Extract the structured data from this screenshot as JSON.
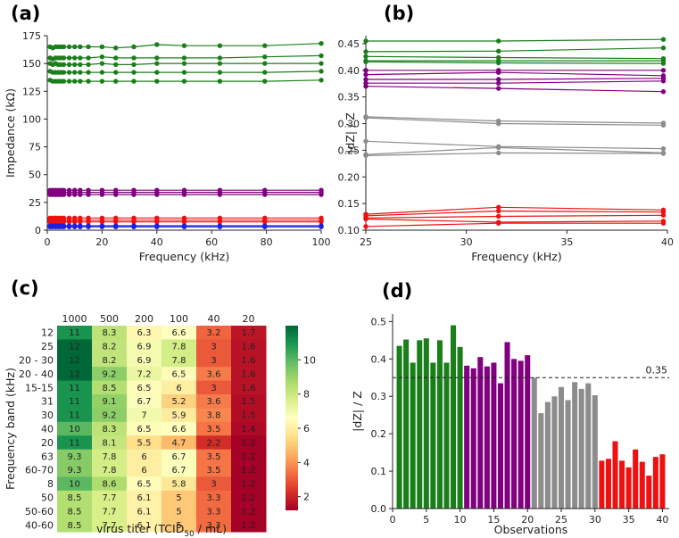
{
  "colors": {
    "green": "#1a7f1a",
    "purple": "#800080",
    "red": "#ee1111",
    "blue": "#1f1fe0",
    "gray": "#8c8c8c"
  },
  "chart_data": [
    {
      "panel": "(a)",
      "type": "line",
      "xlabel": "Frequency (kHz)",
      "ylabel": "Impedance (kΩ)",
      "xlim": [
        0,
        100
      ],
      "ylim": [
        0,
        175
      ],
      "xticks": [
        "0",
        "20",
        "40",
        "60",
        "80",
        "100"
      ],
      "yticks": [
        "0",
        "25",
        "50",
        "75",
        "100",
        "125",
        "150",
        "175"
      ],
      "x": [
        1,
        2,
        3,
        4,
        5,
        6,
        8,
        10,
        12,
        15,
        20,
        25,
        31.6,
        40,
        50,
        63,
        79.4,
        100
      ],
      "series": [
        {
          "name": "green 1",
          "color": "green",
          "values": [
            165,
            164,
            165,
            165,
            165,
            165,
            165,
            165,
            165,
            165,
            165,
            164,
            165,
            167,
            166,
            166,
            166,
            168
          ]
        },
        {
          "name": "green 2",
          "color": "green",
          "values": [
            155,
            154,
            155,
            155,
            155,
            155,
            155,
            155,
            155,
            155,
            156,
            155,
            155,
            155,
            155,
            155,
            156,
            157
          ]
        },
        {
          "name": "green 3",
          "color": "green",
          "values": [
            150,
            149,
            150,
            149,
            149,
            149,
            149,
            149,
            149,
            149,
            150,
            149,
            149,
            150,
            150,
            150,
            150,
            150
          ]
        },
        {
          "name": "green 4",
          "color": "green",
          "values": [
            143,
            142,
            142,
            142,
            142,
            142,
            142,
            142,
            142,
            142,
            142,
            142,
            142,
            142,
            142,
            142,
            142,
            143
          ]
        },
        {
          "name": "green 5",
          "color": "green",
          "values": [
            135,
            134,
            134,
            134,
            134,
            134,
            134,
            134,
            134,
            134,
            134,
            134,
            134,
            134,
            134,
            134,
            134,
            135
          ]
        },
        {
          "name": "purple 1",
          "color": "purple",
          "values": [
            36,
            36,
            36,
            36,
            36,
            36,
            36,
            36,
            36,
            36,
            36,
            36,
            36,
            36,
            36,
            36,
            36,
            36
          ]
        },
        {
          "name": "purple 2",
          "color": "purple",
          "values": [
            34,
            34,
            34,
            34,
            34,
            34,
            34,
            34,
            34,
            34,
            34,
            34,
            34,
            34,
            34,
            34,
            34,
            34
          ]
        },
        {
          "name": "purple 3",
          "color": "purple",
          "values": [
            32,
            32,
            32,
            32,
            32,
            32,
            32,
            32,
            32,
            32,
            32,
            32,
            32,
            32,
            32,
            32,
            32,
            32
          ]
        },
        {
          "name": "red 1",
          "color": "red",
          "values": [
            11,
            11,
            11,
            11,
            11,
            11,
            11,
            11,
            11,
            11,
            11,
            11,
            11,
            11,
            11,
            11,
            11,
            11
          ]
        },
        {
          "name": "red 2",
          "color": "red",
          "values": [
            9,
            9,
            9,
            9,
            9,
            9,
            9,
            9,
            9,
            9,
            9,
            9,
            9,
            9,
            9,
            9,
            9,
            9
          ]
        },
        {
          "name": "red 3",
          "color": "red",
          "values": [
            7.5,
            7.5,
            7.5,
            7.5,
            7.5,
            7.5,
            7.5,
            7.5,
            7.5,
            7.5,
            7.5,
            7.5,
            7.5,
            7.5,
            7.5,
            7.5,
            7.5,
            7.5
          ]
        },
        {
          "name": "blue 1",
          "color": "blue",
          "values": [
            4,
            4,
            4,
            4,
            4,
            4,
            4,
            4,
            4,
            4,
            4,
            4,
            4,
            4,
            4,
            4,
            4,
            4
          ]
        },
        {
          "name": "blue 2",
          "color": "blue",
          "values": [
            3,
            3,
            3,
            3,
            3,
            3,
            3,
            3,
            3,
            3,
            3,
            3,
            3,
            3,
            3,
            3,
            3,
            3
          ]
        }
      ]
    },
    {
      "panel": "(b)",
      "type": "line",
      "xlabel": "Frequency (kHz)",
      "ylabel": "|dZ| / Z",
      "xlim": [
        25,
        40
      ],
      "ylim": [
        0.1,
        0.465
      ],
      "xticks": [
        "25",
        "30",
        "35",
        "40"
      ],
      "yticks": [
        "0.10",
        "0.15",
        "0.20",
        "0.25",
        "0.30",
        "0.35",
        "0.40",
        "0.45"
      ],
      "x": [
        25,
        31.6,
        39.8
      ],
      "series": [
        {
          "name": "green 1",
          "color": "green",
          "values": [
            0.455,
            0.455,
            0.458
          ]
        },
        {
          "name": "green 2",
          "color": "green",
          "values": [
            0.435,
            0.436,
            0.442
          ]
        },
        {
          "name": "green 3",
          "color": "green",
          "values": [
            0.426,
            0.424,
            0.422
          ]
        },
        {
          "name": "green 4",
          "color": "green",
          "values": [
            0.418,
            0.418,
            0.418
          ]
        },
        {
          "name": "green 5",
          "color": "green",
          "values": [
            0.416,
            0.414,
            0.413
          ]
        },
        {
          "name": "purple 1",
          "color": "purple",
          "values": [
            0.4,
            0.4,
            0.4
          ]
        },
        {
          "name": "purple 2",
          "color": "purple",
          "values": [
            0.392,
            0.396,
            0.39
          ]
        },
        {
          "name": "purple 3",
          "color": "purple",
          "values": [
            0.383,
            0.383,
            0.385
          ]
        },
        {
          "name": "purple 4",
          "color": "purple",
          "values": [
            0.376,
            0.376,
            0.38
          ]
        },
        {
          "name": "purple 5",
          "color": "purple",
          "values": [
            0.37,
            0.366,
            0.36
          ]
        },
        {
          "name": "gray 1",
          "color": "gray",
          "values": [
            0.313,
            0.305,
            0.301
          ]
        },
        {
          "name": "gray 2",
          "color": "gray",
          "values": [
            0.311,
            0.3,
            0.297
          ]
        },
        {
          "name": "gray 3",
          "color": "gray",
          "values": [
            0.267,
            0.257,
            0.253
          ]
        },
        {
          "name": "gray 4",
          "color": "gray",
          "values": [
            0.242,
            0.255,
            0.245
          ]
        },
        {
          "name": "gray 5",
          "color": "gray",
          "values": [
            0.24,
            0.245,
            0.244
          ]
        },
        {
          "name": "red 1",
          "color": "red",
          "values": [
            0.13,
            0.143,
            0.138
          ]
        },
        {
          "name": "red 2",
          "color": "red",
          "values": [
            0.127,
            0.136,
            0.134
          ]
        },
        {
          "name": "red 3",
          "color": "red",
          "values": [
            0.123,
            0.126,
            0.128
          ]
        },
        {
          "name": "red 4",
          "color": "red",
          "values": [
            0.121,
            0.115,
            0.117
          ]
        },
        {
          "name": "red 5",
          "color": "red",
          "values": [
            0.107,
            0.113,
            0.113
          ]
        }
      ]
    },
    {
      "panel": "(c)",
      "type": "heatmap",
      "xlabel": "virus titer (TCID",
      "xlabel_sub": "50",
      "xlabel_tail": " / mL)",
      "ylabel": "Frequency band (kHz)",
      "columns": [
        "1000",
        "500",
        "200",
        "100",
        "40",
        "20"
      ],
      "rows": [
        "12",
        "25",
        "20 - 30",
        "20 - 40",
        "15-15",
        "31",
        "30",
        "40",
        "20",
        "63",
        "60-70",
        "8",
        "50",
        "50-60",
        "40-60"
      ],
      "values": [
        [
          "11",
          "8.3",
          "6.3",
          "6.6",
          "3.2",
          "1.7"
        ],
        [
          "12",
          "8.2",
          "6.9",
          "7.8",
          "3",
          "1.6"
        ],
        [
          "12",
          "8.2",
          "6.9",
          "7.8",
          "3",
          "1.6"
        ],
        [
          "12",
          "9.2",
          "7.2",
          "6.5",
          "3.6",
          "1.6"
        ],
        [
          "11",
          "8.5",
          "6.5",
          "6",
          "3",
          "1.6"
        ],
        [
          "11",
          "9.1",
          "6.7",
          "5.2",
          "3.6",
          "1.5"
        ],
        [
          "11",
          "9.2",
          "7",
          "5.9",
          "3.8",
          "1.5"
        ],
        [
          "10",
          "8.3",
          "6.5",
          "6.6",
          "3.5",
          "1.4"
        ],
        [
          "11",
          "8.1",
          "5.5",
          "4.7",
          "2.2",
          "1.2"
        ],
        [
          "9.3",
          "7.8",
          "6",
          "6.7",
          "3.5",
          "1.2"
        ],
        [
          "9.3",
          "7.8",
          "6",
          "6.7",
          "3.5",
          "1.2"
        ],
        [
          "10",
          "8.6",
          "6.5",
          "5.8",
          "3",
          "1.2"
        ],
        [
          "8.5",
          "7.7",
          "6.1",
          "5",
          "3.3",
          "1.2"
        ],
        [
          "8.5",
          "7.7",
          "6.1",
          "5",
          "3.3",
          "1.2"
        ],
        [
          "8.5",
          "7.7",
          "6.1",
          "5",
          "3.3",
          "1.2"
        ]
      ],
      "colorbar": {
        "min": 1.2,
        "max": 12,
        "ticks": [
          "2",
          "4",
          "6",
          "8",
          "10"
        ]
      }
    },
    {
      "panel": "(d)",
      "type": "bar",
      "xlabel": "Observations",
      "ylabel": "|dZ| / Z",
      "xlim": [
        0,
        41
      ],
      "ylim": [
        0,
        0.52
      ],
      "xticks": [
        "0",
        "5",
        "10",
        "15",
        "20",
        "25",
        "30",
        "35",
        "40"
      ],
      "yticks": [
        "0.0",
        "0.1",
        "0.2",
        "0.3",
        "0.4",
        "0.5"
      ],
      "threshold": 0.35,
      "threshold_label": "0.35",
      "groups": [
        {
          "color": "green",
          "start": 1,
          "values": [
            0.435,
            0.452,
            0.39,
            0.45,
            0.455,
            0.39,
            0.45,
            0.39,
            0.49,
            0.432
          ]
        },
        {
          "color": "purple",
          "start": 11,
          "values": [
            0.382,
            0.375,
            0.405,
            0.38,
            0.39,
            0.335,
            0.445,
            0.4,
            0.395,
            0.41
          ]
        },
        {
          "color": "gray",
          "start": 21,
          "values": [
            0.35,
            0.255,
            0.285,
            0.3,
            0.325,
            0.29,
            0.338,
            0.32,
            0.335,
            0.303
          ]
        },
        {
          "color": "red",
          "start": 31,
          "values": [
            0.128,
            0.133,
            0.18,
            0.128,
            0.11,
            0.158,
            0.125,
            0.088,
            0.138,
            0.145
          ]
        }
      ]
    }
  ]
}
